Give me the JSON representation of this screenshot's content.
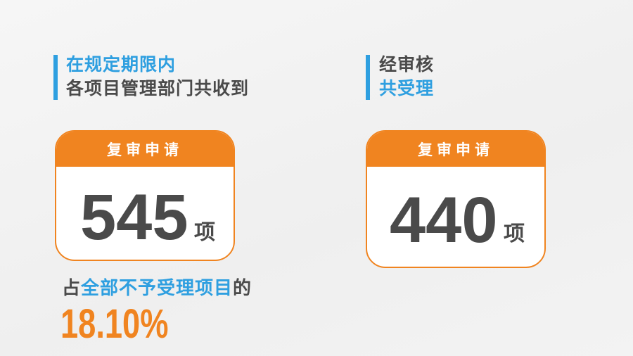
{
  "left": {
    "line1": "在规定期限内",
    "line2": "各项目管理部门共收到",
    "card": {
      "header": "复审申请",
      "value": "545",
      "unit": "项"
    },
    "share": {
      "prefix": "占",
      "highlight": "全部不予受理项目",
      "suffix": "的",
      "percent": "18.10%"
    }
  },
  "right": {
    "line1": "经审核",
    "line2": "共受理",
    "card": {
      "header": "复审申请",
      "value": "440",
      "unit": "项"
    }
  },
  "colors": {
    "accent_blue": "#2e9fe0",
    "accent_orange": "#f08420",
    "text_dark": "#4a4a4a"
  }
}
